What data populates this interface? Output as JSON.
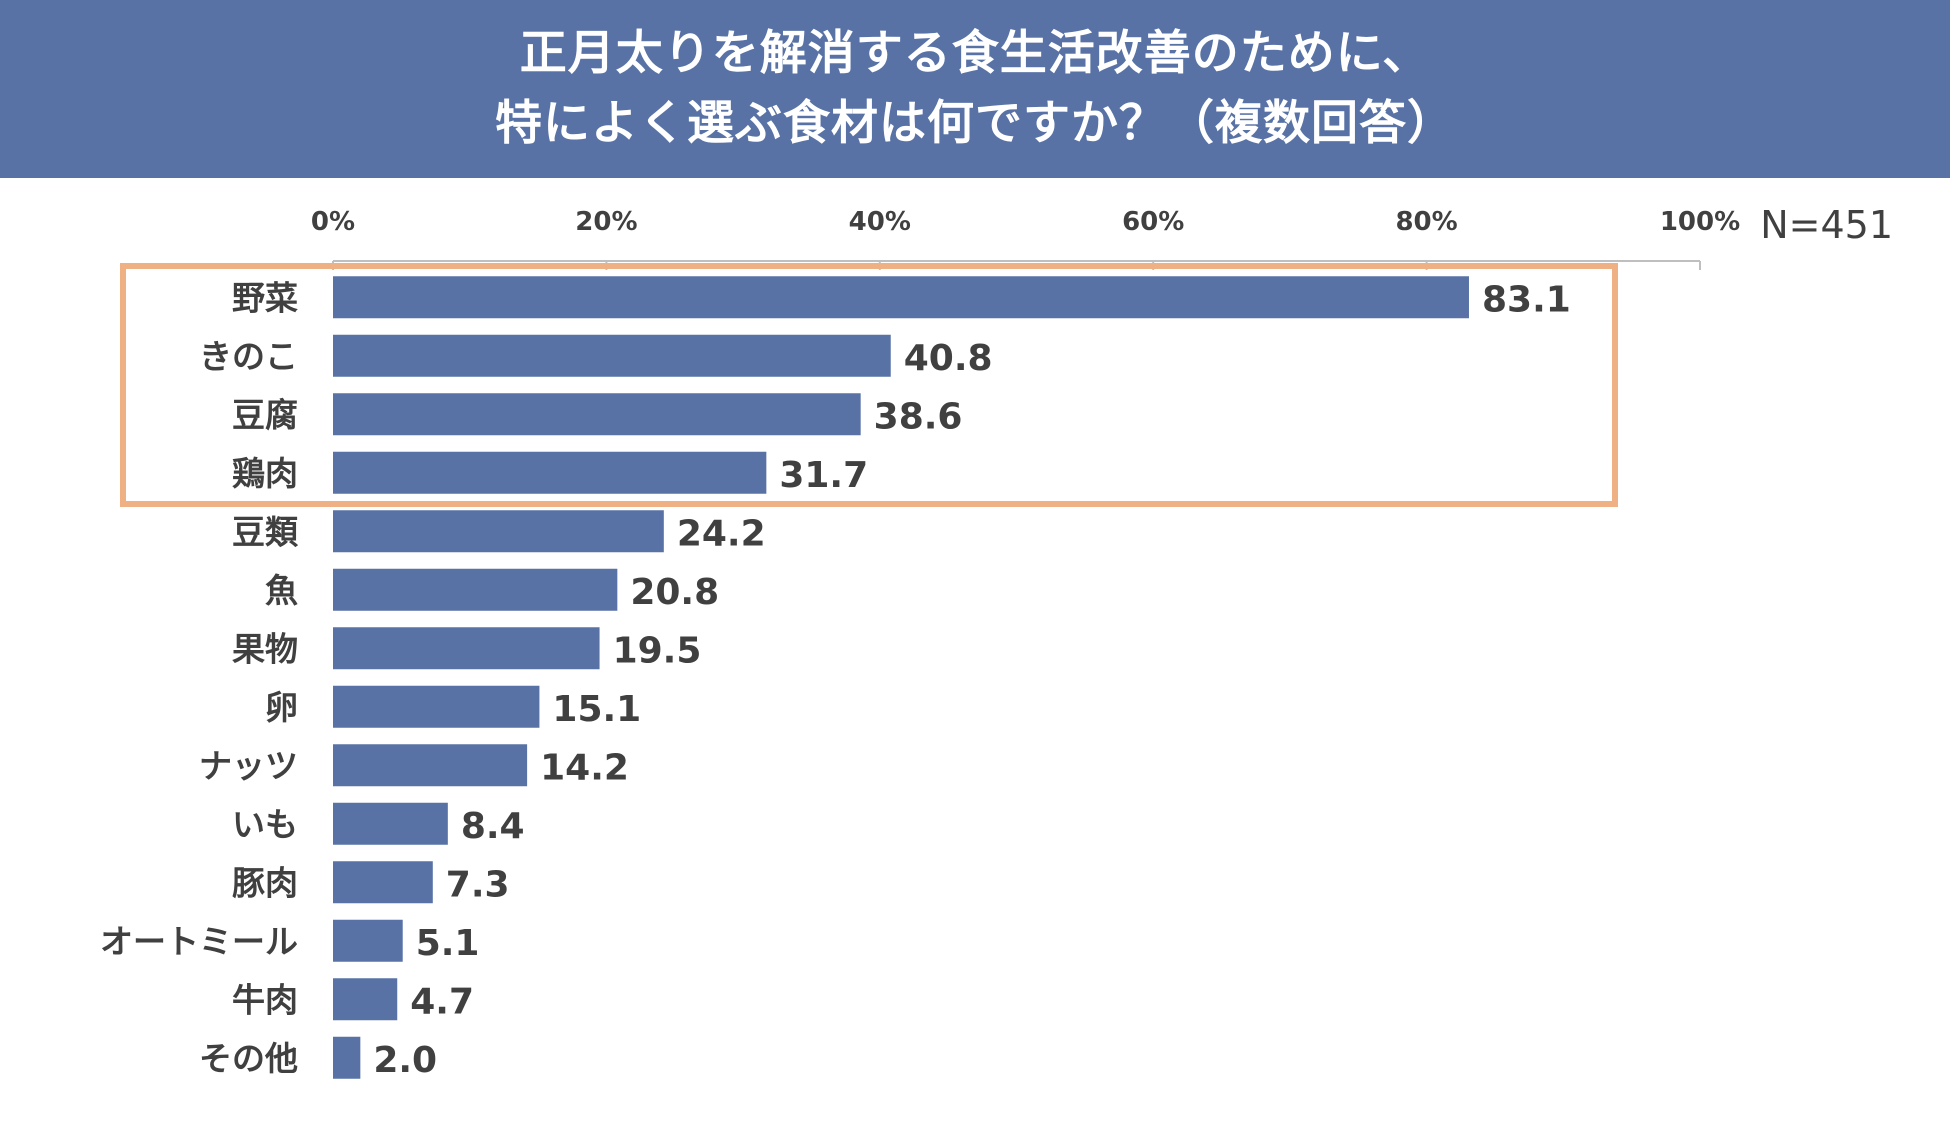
{
  "header": {
    "title_line1": "正月太りを解消する食生活改善のために、",
    "title_line2": "特によく選ぶ食材は何ですか？（複数回答）",
    "band_color": "#5872a6"
  },
  "chart_data": {
    "type": "bar",
    "orientation": "horizontal",
    "title": "正月太りを解消する食生活改善のために、特によく選ぶ食材は何ですか？（複数回答）",
    "sample_size": "N=451",
    "categories": [
      "野菜",
      "きのこ",
      "豆腐",
      "鶏肉",
      "豆類",
      "魚",
      "果物",
      "卵",
      "ナッツ",
      "いも",
      "豚肉",
      "オートミール",
      "牛肉",
      "その他"
    ],
    "values": [
      83.1,
      40.8,
      38.6,
      31.7,
      24.2,
      20.8,
      19.5,
      15.1,
      14.2,
      8.4,
      7.3,
      5.1,
      4.7,
      2.0
    ],
    "value_labels": [
      "83.1",
      "40.8",
      "38.6",
      "31.7",
      "24.2",
      "20.8",
      "19.5",
      "15.1",
      "14.2",
      "8.4",
      "7.3",
      "5.1",
      "4.7",
      "2.0"
    ],
    "xlim": [
      0,
      100
    ],
    "x_ticks": [
      0,
      20,
      40,
      60,
      80,
      100
    ],
    "x_tick_labels": [
      "0%",
      "20%",
      "40%",
      "60%",
      "80%",
      "100%"
    ],
    "axis_position": "top",
    "bar_color": "#5872a6",
    "highlight": {
      "from_index": 0,
      "to_index": 3,
      "color": "#efb083"
    }
  }
}
